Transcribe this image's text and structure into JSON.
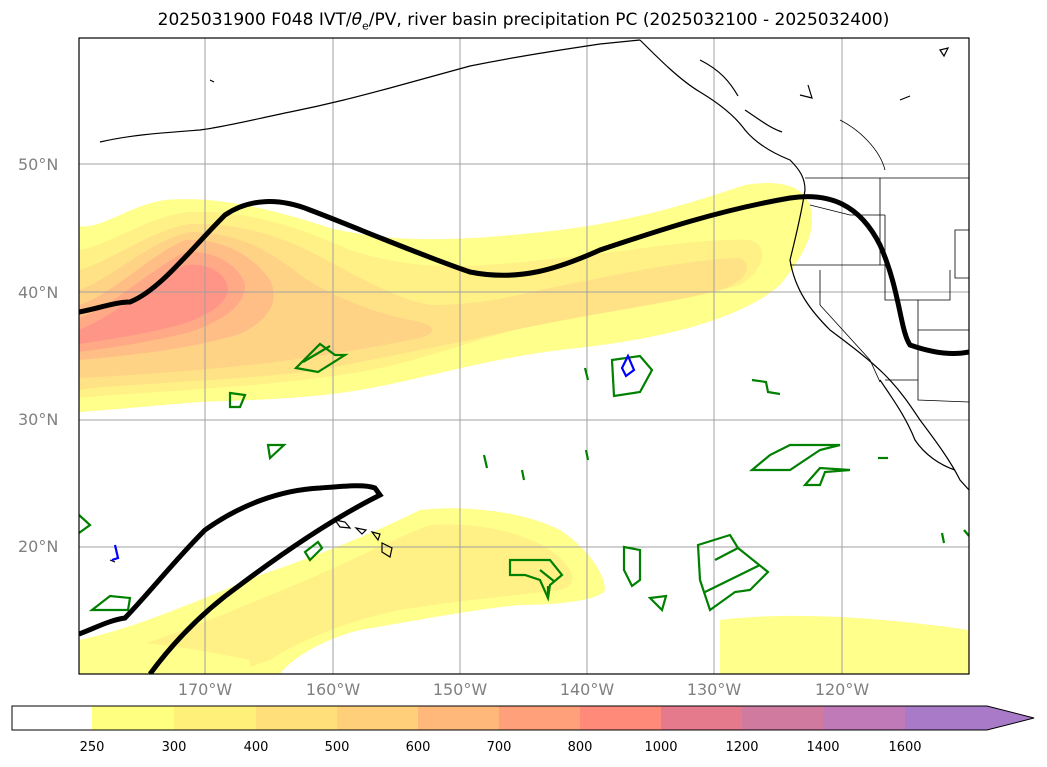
{
  "title": {
    "prefix": "2025031900 F048 IVT/",
    "theta_symbol": "θ",
    "theta_subscript": "e",
    "suffix": "/PV, river basin precipitation PC (2025032100 - 2025032400)"
  },
  "map": {
    "projection": "PlateCarree",
    "lon_range": [
      -180,
      -110
    ],
    "lat_range": [
      10,
      60
    ],
    "lat_ticks": [
      {
        "value": 50,
        "label": "50°N"
      },
      {
        "value": 40,
        "label": "40°N"
      },
      {
        "value": 30,
        "label": "30°N"
      },
      {
        "value": 20,
        "label": "20°N"
      }
    ],
    "lon_ticks": [
      {
        "value": -170,
        "label": "170°W"
      },
      {
        "value": -160,
        "label": "160°W"
      },
      {
        "value": -150,
        "label": "150°W"
      },
      {
        "value": -140,
        "label": "140°W"
      },
      {
        "value": -130,
        "label": "130°W"
      },
      {
        "value": -120,
        "label": "120°W"
      }
    ],
    "grid": true,
    "features": [
      "coastlines",
      "us_state_borders",
      "canada_us_border"
    ],
    "ivt_field": "filled contours of integrated vapor transport",
    "pv_contour_color": "#000000",
    "theta_e_contours_colors": [
      "#008000",
      "#0000ff"
    ]
  },
  "colorbar": {
    "labels": [
      "250",
      "300",
      "400",
      "500",
      "600",
      "700",
      "800",
      "1000",
      "1200",
      "1400",
      "1600"
    ],
    "colors": [
      "#ffffff",
      "#ffff80",
      "#fff07a",
      "#ffdf7a",
      "#ffcf7a",
      "#ffb87a",
      "#ffa07a",
      "#ff8a7a",
      "#e47a8c",
      "#d07aa0",
      "#c07ab8",
      "#a87ac8"
    ],
    "extend": "max"
  }
}
